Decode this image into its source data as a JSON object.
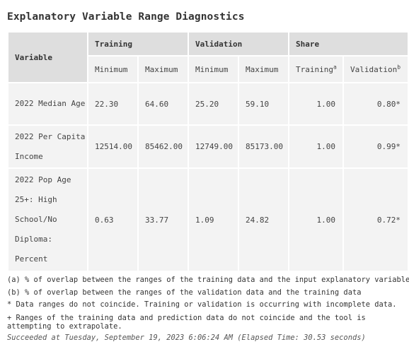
{
  "title": "Explanatory Variable Range Diagnostics",
  "table": {
    "header": {
      "variable": "Variable",
      "training": "Training",
      "validation": "Validation",
      "share": "Share",
      "training_min": "Minimum",
      "training_max": "Maximum",
      "validation_min": "Minimum",
      "validation_max": "Maximum",
      "share_training": "Training",
      "share_training_sup": "a",
      "share_validation": "Validation",
      "share_validation_sup": "b"
    },
    "rows": [
      {
        "variable": "2022 Median Age",
        "training_min": "22.30",
        "training_max": "64.60",
        "validation_min": "25.20",
        "validation_max": "59.10",
        "share_training": "1.00",
        "share_validation": "0.80*"
      },
      {
        "variable": "2022 Per Capita Income",
        "training_min": "12514.00",
        "training_max": "85462.00",
        "validation_min": "12749.00",
        "validation_max": "85173.00",
        "share_training": "1.00",
        "share_validation": "0.99*"
      },
      {
        "variable": "2022 Pop Age 25+: High School/No Diploma: Percent",
        "training_min": "0.63",
        "training_max": "33.77",
        "validation_min": "1.09",
        "validation_max": "24.82",
        "share_training": "1.00",
        "share_validation": "0.72*"
      }
    ]
  },
  "notes": {
    "a": "(a) % of overlap between the ranges of the training data and the input explanatory variable",
    "b": "(b) % of overlap between the ranges of the validation data and the training data",
    "star": "* Data ranges do not coincide. Training or validation is occurring with incomplete data.",
    "plus": "+ Ranges of the training data and prediction data do not coincide and the tool is attempting to extrapolate.",
    "status": "Succeeded at Tuesday, September 19, 2023 6:06:24 AM (Elapsed Time: 30.53 seconds)"
  }
}
